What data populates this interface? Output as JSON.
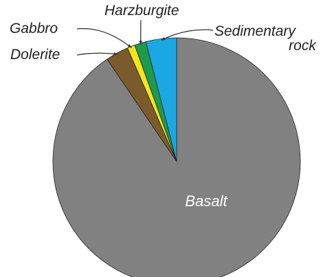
{
  "chart_data": {
    "type": "pie",
    "categories": [
      "Basalt",
      "Dolerite",
      "Gabbro",
      "Harzburgite",
      "Sedimentary rock"
    ],
    "values": [
      90.5,
      3,
      1,
      1.5,
      4
    ],
    "colors": [
      "#818181",
      "#7b5a2c",
      "#f3e51a",
      "#1e9a4c",
      "#1ba8e2"
    ]
  }
}
